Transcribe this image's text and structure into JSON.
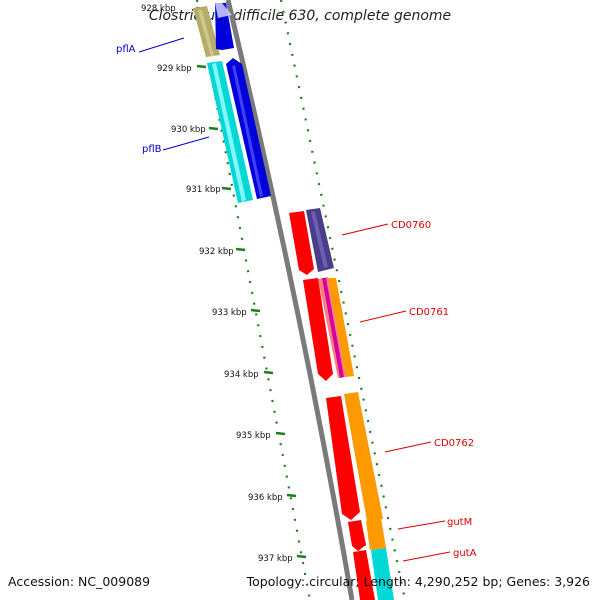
{
  "title": "Clostridium difficile 630, complete genome",
  "accession": "Accession: NC_009089",
  "summary": "Topology: circular; Length: 4,290,252 bp; Genes: 3,926",
  "ticks": [
    {
      "label": "928 kbp"
    },
    {
      "label": "929 kbp"
    },
    {
      "label": "930 kbp"
    },
    {
      "label": "931 kbp"
    },
    {
      "label": "932 kbp"
    },
    {
      "label": "933 kbp"
    },
    {
      "label": "934 kbp"
    },
    {
      "label": "935 kbp"
    },
    {
      "label": "936 kbp"
    },
    {
      "label": "937 kbp"
    }
  ],
  "genes": [
    {
      "label": "pflA",
      "color": "#0000cc"
    },
    {
      "label": "pflB",
      "color": "#0000cc"
    },
    {
      "label": "CD0760",
      "color": "#dd0000"
    },
    {
      "label": "CD0761",
      "color": "#dd0000"
    },
    {
      "label": "CD0762",
      "color": "#dd0000"
    },
    {
      "label": "gutM",
      "color": "#dd0000"
    },
    {
      "label": "gutA",
      "color": "#dd0000"
    }
  ],
  "colors": {
    "backbone": "#7a7a7a",
    "gc_dots": "#1a7f1a",
    "tick": "#1a7f1a",
    "blue": "#0000cc",
    "cyan": "#00d8d8",
    "khaki": "#b5ac6a",
    "red": "#ff0000",
    "indigo": "#4a3d8a",
    "orange": "#ff9900",
    "magenta": "#d400a0",
    "salmon": "#ff7f7f"
  }
}
